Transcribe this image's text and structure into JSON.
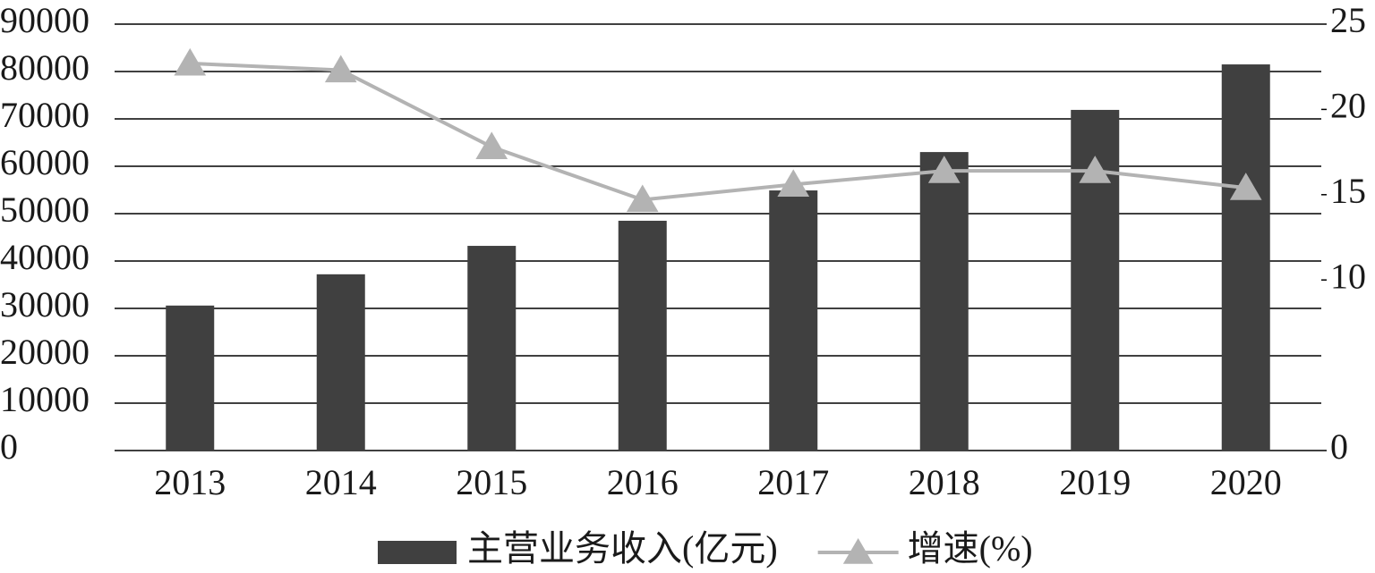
{
  "chart_data": {
    "type": "bar-line",
    "categories": [
      "2013",
      "2014",
      "2015",
      "2016",
      "2017",
      "2018",
      "2019",
      "2020"
    ],
    "series": [
      {
        "name": "主营业务收入(亿元)",
        "type": "bar",
        "color": "#404040",
        "values": [
          30600,
          37200,
          43200,
          48500,
          54900,
          63000,
          71900,
          81500
        ]
      },
      {
        "name": "增速(%)",
        "type": "line",
        "axis": "y2",
        "color": "#b3b3b3",
        "values": [
          22.7,
          22.3,
          17.8,
          14.7,
          15.6,
          16.4,
          16.4,
          15.4
        ]
      }
    ],
    "ylim": [
      0,
      90000
    ],
    "yticks": [
      0,
      10000,
      20000,
      30000,
      40000,
      50000,
      60000,
      70000,
      80000,
      90000
    ],
    "y2lim": [
      0,
      25
    ],
    "y2ticks": [
      0,
      10,
      15,
      20,
      25
    ],
    "grid": true,
    "legend": "bottom"
  }
}
